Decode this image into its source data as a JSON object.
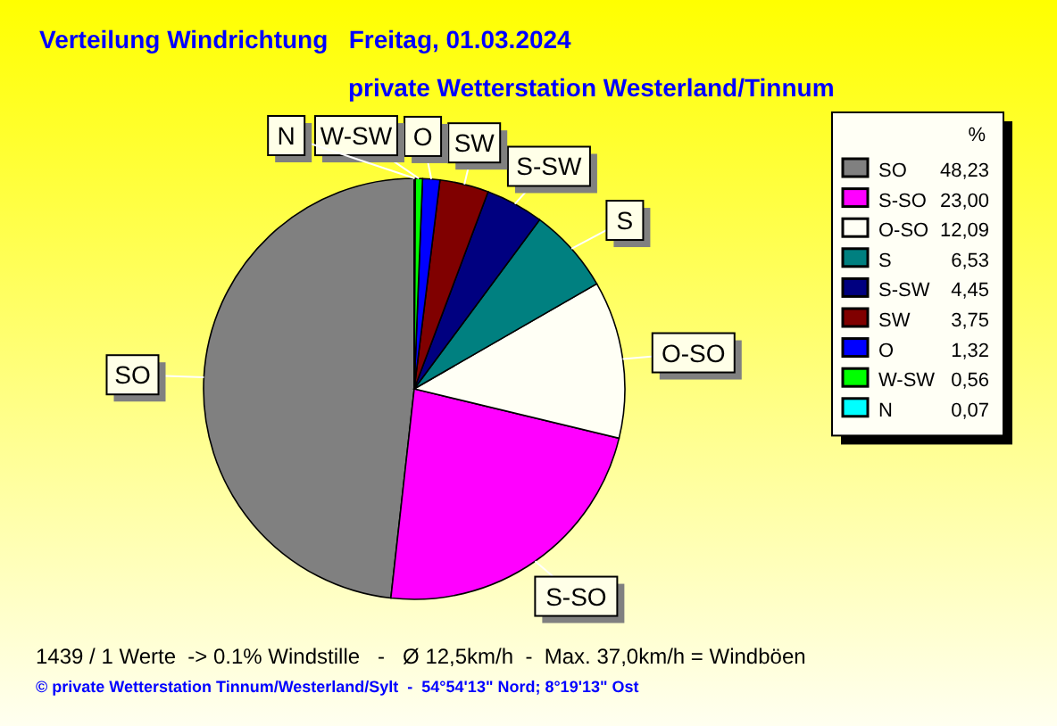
{
  "chart_data": {
    "type": "pie",
    "title": "Verteilung Windrichtung   Freitag, 01.03.2024",
    "subtitle": "private Wetterstation Westerland/Tinnum",
    "categories": [
      "SO",
      "S-SO",
      "O-SO",
      "S",
      "S-SW",
      "SW",
      "O",
      "W-SW",
      "N"
    ],
    "values": [
      48.23,
      23.0,
      12.09,
      6.53,
      4.45,
      3.75,
      1.32,
      0.56,
      0.07
    ],
    "colors": [
      "#808080",
      "#ff00ff",
      "#fffff5",
      "#008080",
      "#000080",
      "#800000",
      "#0000ff",
      "#00ff00",
      "#00ffff"
    ],
    "value_labels": [
      "48,23",
      "23,00",
      "12,09",
      "6,53",
      "4,45",
      "3,75",
      "1,32",
      "0,56",
      "0,07"
    ],
    "legend_title": "%",
    "legend": "right",
    "annotations": [
      "1439 / 1 Werte  -> 0.1% Windstille   -   Ø 12,5km/h  -  Max. 37,0km/h = Windböen",
      "© private Wetterstation Tinnum/Westerland/Sylt  -  54°54'13\" Nord; 8°19'13\" Ost"
    ]
  }
}
